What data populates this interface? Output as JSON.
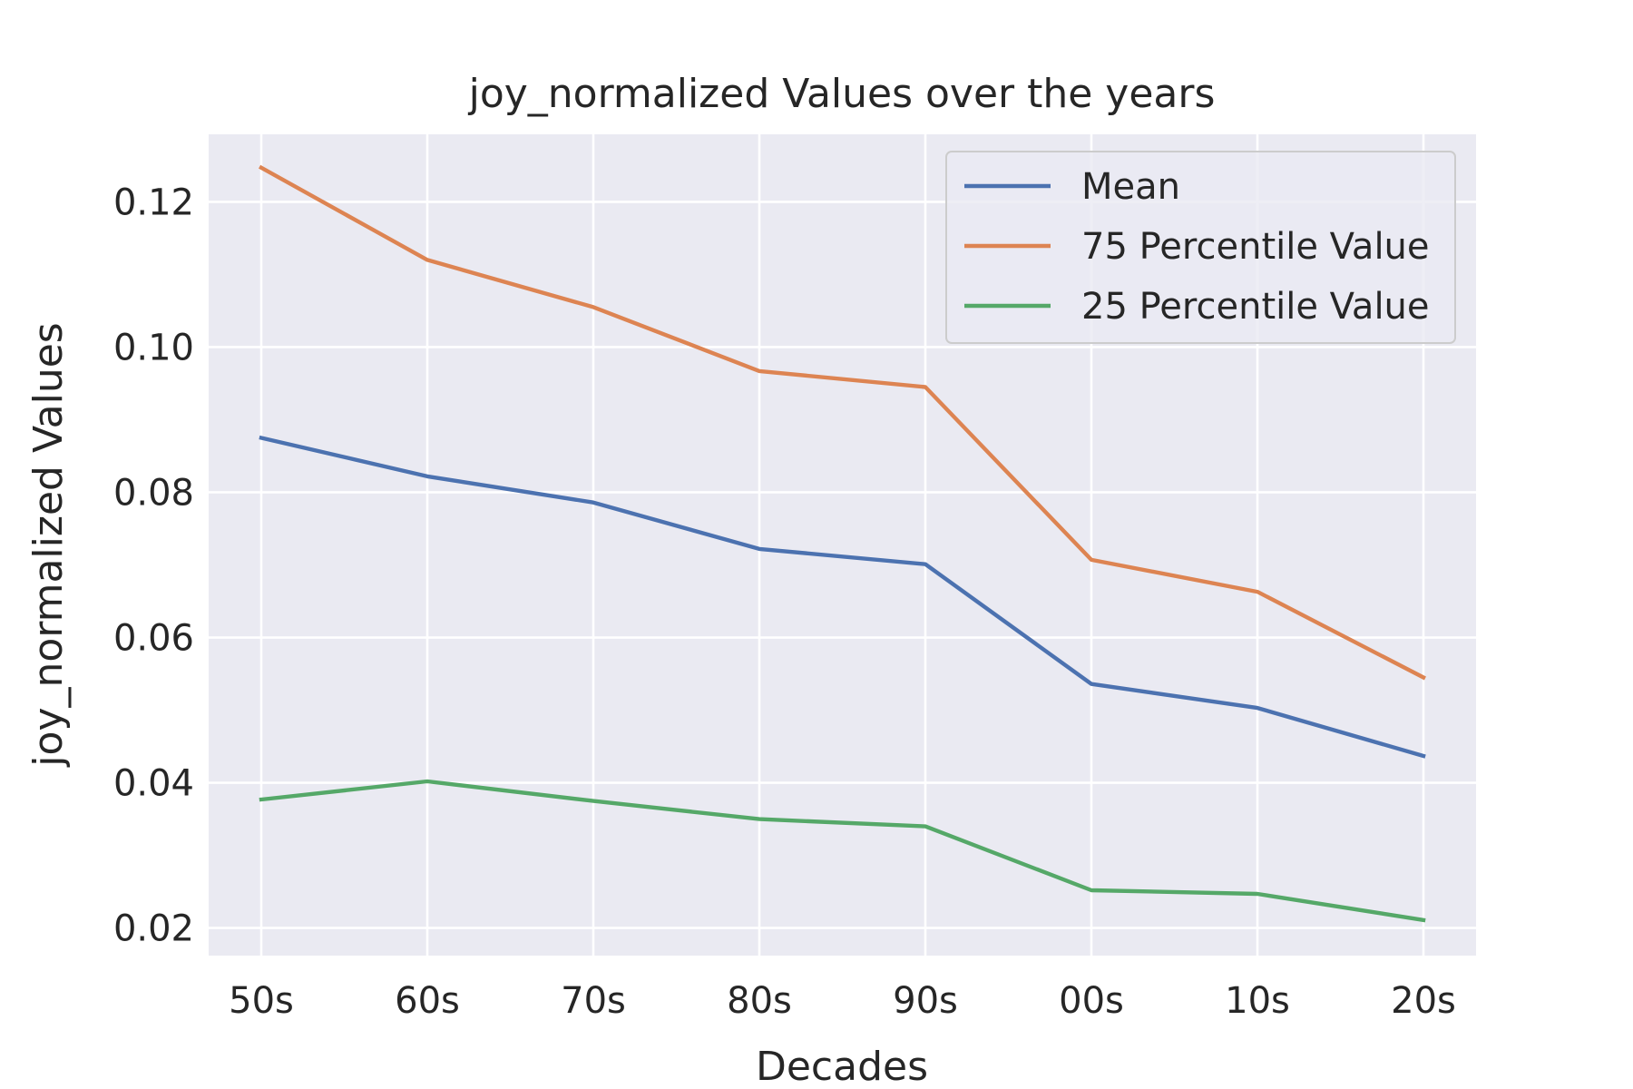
{
  "chart_data": {
    "type": "line",
    "title": "joy_normalized Values over the years",
    "xlabel": "Decades",
    "ylabel": "joy_normalized Values",
    "categories": [
      "50s",
      "60s",
      "70s",
      "80s",
      "90s",
      "00s",
      "10s",
      "20s"
    ],
    "series": [
      {
        "name": "Mean",
        "color": "#4c72b0",
        "values": [
          0.0875,
          0.0822,
          0.0786,
          0.0722,
          0.0701,
          0.0536,
          0.0503,
          0.0437
        ]
      },
      {
        "name": "75 Percentile Value",
        "color": "#dd8452",
        "values": [
          0.1247,
          0.112,
          0.1055,
          0.0967,
          0.0945,
          0.0707,
          0.0663,
          0.0545
        ]
      },
      {
        "name": "25 Percentile Value",
        "color": "#55a868",
        "values": [
          0.0377,
          0.0402,
          0.0375,
          0.035,
          0.034,
          0.0252,
          0.0247,
          0.0211
        ]
      }
    ],
    "yticks": [
      "0.02",
      "0.04",
      "0.06",
      "0.08",
      "0.10",
      "0.12"
    ],
    "ylim": [
      0.0162,
      0.1293
    ],
    "grid": true,
    "legend_position": "top-right",
    "background_color": "#eaeaf2",
    "grid_color": "#ffffff"
  }
}
